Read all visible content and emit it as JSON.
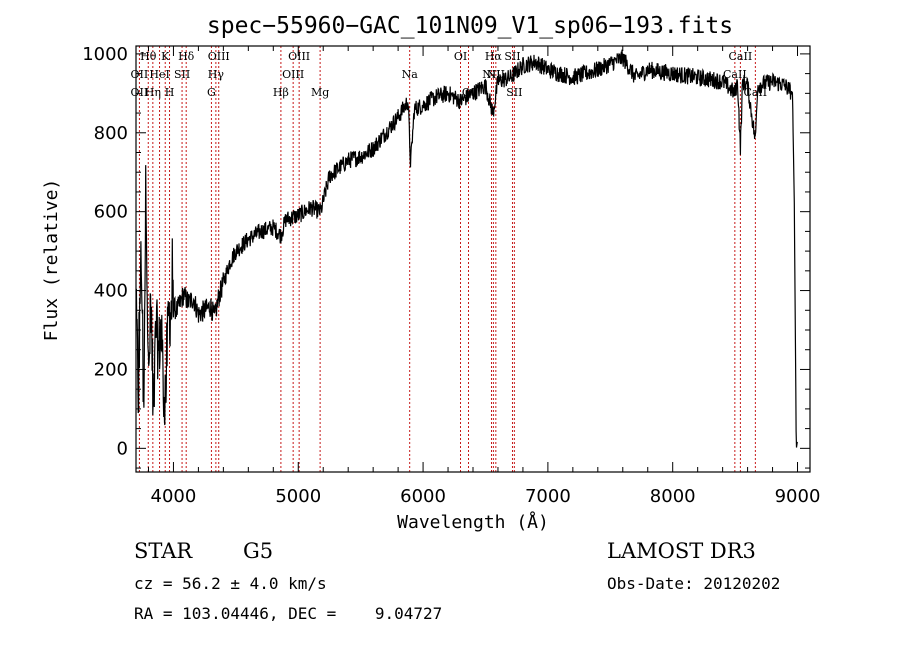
{
  "chart_data": {
    "type": "line",
    "title": "spec−55960−GAC_101N09_V1_sp06−193.fits",
    "xlabel": "Wavelength (Å)",
    "ylabel": "Flux (relative)",
    "xlim": [
      3700,
      9100
    ],
    "ylim": [
      -60,
      1020
    ],
    "xticks": [
      4000,
      5000,
      6000,
      7000,
      8000,
      9000
    ],
    "yticks": [
      0,
      200,
      400,
      600,
      800,
      1000
    ],
    "series": [
      {
        "name": "flux",
        "anchors": [
          [
            3700,
            370
          ],
          [
            3720,
            120
          ],
          [
            3740,
            560
          ],
          [
            3760,
            80
          ],
          [
            3780,
            700
          ],
          [
            3800,
            150
          ],
          [
            3820,
            380
          ],
          [
            3840,
            60
          ],
          [
            3860,
            320
          ],
          [
            3880,
            240
          ],
          [
            3900,
            300
          ],
          [
            3930,
            120
          ],
          [
            3960,
            330
          ],
          [
            3990,
            360
          ],
          [
            4030,
            350
          ],
          [
            4080,
            390
          ],
          [
            4120,
            370
          ],
          [
            4160,
            380
          ],
          [
            4200,
            340
          ],
          [
            4250,
            350
          ],
          [
            4300,
            360
          ],
          [
            4330,
            330
          ],
          [
            4360,
            380
          ],
          [
            4400,
            420
          ],
          [
            4450,
            470
          ],
          [
            4500,
            500
          ],
          [
            4600,
            530
          ],
          [
            4700,
            550
          ],
          [
            4800,
            560
          ],
          [
            4860,
            540
          ],
          [
            4900,
            580
          ],
          [
            5000,
            590
          ],
          [
            5100,
            610
          ],
          [
            5180,
            600
          ],
          [
            5250,
            690
          ],
          [
            5400,
            730
          ],
          [
            5500,
            740
          ],
          [
            5600,
            760
          ],
          [
            5700,
            800
          ],
          [
            5800,
            840
          ],
          [
            5880,
            880
          ],
          [
            5900,
            720
          ],
          [
            5930,
            860
          ],
          [
            6000,
            870
          ],
          [
            6100,
            890
          ],
          [
            6200,
            900
          ],
          [
            6300,
            880
          ],
          [
            6400,
            900
          ],
          [
            6500,
            920
          ],
          [
            6560,
            850
          ],
          [
            6600,
            930
          ],
          [
            6700,
            940
          ],
          [
            6800,
            970
          ],
          [
            6900,
            980
          ],
          [
            7000,
            960
          ],
          [
            7200,
            940
          ],
          [
            7400,
            960
          ],
          [
            7600,
            990
          ],
          [
            7700,
            940
          ],
          [
            7800,
            960
          ],
          [
            8000,
            950
          ],
          [
            8200,
            940
          ],
          [
            8400,
            930
          ],
          [
            8498,
            900
          ],
          [
            8520,
            930
          ],
          [
            8542,
            760
          ],
          [
            8560,
            930
          ],
          [
            8600,
            920
          ],
          [
            8662,
            780
          ],
          [
            8680,
            920
          ],
          [
            8800,
            930
          ],
          [
            8900,
            920
          ],
          [
            8960,
            900
          ],
          [
            8975,
            600
          ],
          [
            8990,
            0
          ],
          [
            9000,
            20
          ]
        ]
      }
    ],
    "spectral_lines": [
      {
        "label": "Hθ",
        "x": 3798,
        "row": 1
      },
      {
        "label": "OII",
        "x": 3727,
        "row": 2
      },
      {
        "label": "OII",
        "x": 3727,
        "row": 3
      },
      {
        "label": "Hη",
        "x": 3835,
        "row": 3
      },
      {
        "label": "K",
        "x": 3934,
        "row": 1
      },
      {
        "label": "HeI",
        "x": 3889,
        "row": 2
      },
      {
        "label": "H",
        "x": 3969,
        "row": 3
      },
      {
        "label": "SII",
        "x": 4069,
        "row": 2
      },
      {
        "label": "Hδ",
        "x": 4102,
        "row": 1
      },
      {
        "label": "OIII",
        "x": 4363,
        "row": 1
      },
      {
        "label": "Hγ",
        "x": 4340,
        "row": 2
      },
      {
        "label": "G",
        "x": 4304,
        "row": 3
      },
      {
        "label": "Hβ",
        "x": 4861,
        "row": 3
      },
      {
        "label": "OIII",
        "x": 5007,
        "row": 1
      },
      {
        "label": "OIII",
        "x": 4959,
        "row": 2
      },
      {
        "label": "Mg",
        "x": 5175,
        "row": 3
      },
      {
        "label": "Na",
        "x": 5893,
        "row": 2
      },
      {
        "label": "OI",
        "x": 6300,
        "row": 1
      },
      {
        "label": "OI",
        "x": 6364,
        "row": 3
      },
      {
        "label": "Hα",
        "x": 6563,
        "row": 1
      },
      {
        "label": "SII",
        "x": 6716,
        "row": 1
      },
      {
        "label": "NII",
        "x": 6548,
        "row": 2
      },
      {
        "label": "NII",
        "x": 6583,
        "row": 2
      },
      {
        "label": "SII",
        "x": 6731,
        "row": 3
      },
      {
        "label": "CaII",
        "x": 8542,
        "row": 1
      },
      {
        "label": "CaII",
        "x": 8498,
        "row": 2
      },
      {
        "label": "CaII",
        "x": 8662,
        "row": 3
      }
    ]
  },
  "info": {
    "class_label": "STAR",
    "subclass": "G5",
    "survey": "LAMOST DR3",
    "cz": "cz = 56.2 ± 4.0 km/s",
    "obs_date": "Obs-Date: 20120202",
    "coords": "RA = 103.04446, DEC =    9.04727"
  },
  "colors": {
    "line_marker": "#c00000",
    "spectrum": "#000000"
  }
}
